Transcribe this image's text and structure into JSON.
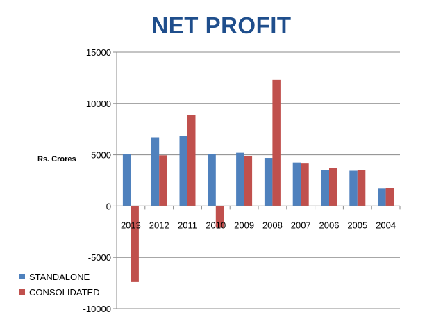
{
  "chart_data": {
    "type": "bar",
    "title": "NET PROFIT",
    "ylabel": "Rs. Crores",
    "xlabel": "",
    "ylim": [
      -10000,
      15000
    ],
    "yticks": [
      15000,
      10000,
      5000,
      0,
      -5000,
      -10000
    ],
    "categories": [
      "2013",
      "2012",
      "2011",
      "2010",
      "2009",
      "2008",
      "2007",
      "2006",
      "2005",
      "2004"
    ],
    "series": [
      {
        "name": "STANDALONE",
        "color": "#4f81bd",
        "values": [
          5100,
          6700,
          6850,
          5050,
          5200,
          4700,
          4250,
          3500,
          3450,
          1700
        ]
      },
      {
        "name": "CONSOLIDATED",
        "color": "#c0504d",
        "values": [
          -7350,
          4950,
          8850,
          -2100,
          4850,
          12300,
          4150,
          3700,
          3550,
          1750
        ]
      }
    ],
    "legend_position": "bottom-left",
    "grid": true
  }
}
